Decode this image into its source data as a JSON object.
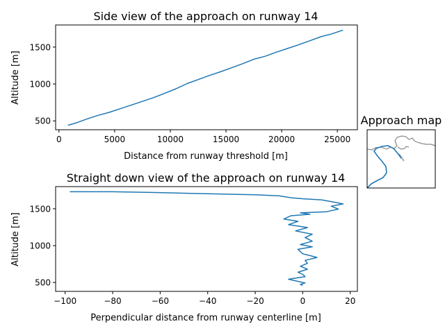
{
  "chart_data": [
    {
      "type": "line",
      "title": "Side view of the approach on runway 14",
      "xlabel": "Distance from runway threshold [m]",
      "ylabel": "Altitude [m]",
      "xlim": [
        -300,
        26800
      ],
      "ylim": [
        380,
        1800
      ],
      "xticks": [
        0,
        5000,
        10000,
        15000,
        20000,
        25000
      ],
      "yticks": [
        500,
        1000,
        1500
      ],
      "xtick_labels": [
        "0",
        "5000",
        "10000",
        "15000",
        "20000",
        "25000"
      ],
      "ytick_labels": [
        "500",
        "1000",
        "1500"
      ],
      "grid": false,
      "series": [
        {
          "color": "#1f77b4",
          "x": [
            800,
            1500,
            2500,
            3500,
            4500,
            5500,
            6500,
            7500,
            8500,
            9500,
            10500,
            11500,
            12500,
            13500,
            14500,
            15500,
            16500,
            17500,
            18500,
            19500,
            20500,
            21500,
            22500,
            23500,
            24500,
            25500
          ],
          "y": [
            440,
            470,
            525,
            575,
            615,
            665,
            715,
            765,
            815,
            875,
            935,
            1005,
            1060,
            1115,
            1165,
            1220,
            1275,
            1335,
            1375,
            1430,
            1480,
            1530,
            1585,
            1640,
            1680,
            1730
          ]
        }
      ]
    },
    {
      "type": "line",
      "title": "Straight down view of the approach on runway 14",
      "xlabel": "Perpendicular distance from runway centerline [m]",
      "ylabel": "Altitude [m]",
      "xlim": [
        -104,
        23
      ],
      "ylim": [
        380,
        1800
      ],
      "xticks": [
        -100,
        -80,
        -60,
        -40,
        -20,
        0,
        20
      ],
      "yticks": [
        500,
        1000,
        1500
      ],
      "xtick_labels": [
        "−100",
        "−80",
        "−60",
        "−40",
        "−20",
        "0",
        "20"
      ],
      "ytick_labels": [
        "500",
        "1000",
        "1500"
      ],
      "grid": false,
      "series": [
        {
          "color": "#1f77b4",
          "x": [
            -98,
            -80,
            -62,
            -42,
            -20,
            -10,
            -5,
            0,
            8,
            14,
            17,
            12,
            15,
            10,
            -1,
            3,
            -5,
            -8,
            -2,
            -6,
            2,
            -3,
            4,
            1,
            4,
            -1,
            4,
            -2,
            0,
            3,
            6,
            1,
            2,
            -1,
            2,
            -2,
            0,
            1,
            -6,
            -2,
            1,
            -1,
            0
          ],
          "y": [
            1730,
            1730,
            1720,
            1705,
            1690,
            1675,
            1650,
            1635,
            1620,
            1585,
            1565,
            1535,
            1495,
            1460,
            1445,
            1425,
            1405,
            1360,
            1330,
            1285,
            1245,
            1200,
            1155,
            1110,
            1060,
            1015,
            985,
            950,
            890,
            865,
            840,
            800,
            760,
            720,
            680,
            640,
            610,
            580,
            545,
            515,
            495,
            475,
            460
          ]
        }
      ]
    },
    {
      "type": "line",
      "title": "Approach map",
      "series": [
        {
          "color": "#888888"
        },
        {
          "color": "#1f77b4"
        }
      ]
    }
  ]
}
